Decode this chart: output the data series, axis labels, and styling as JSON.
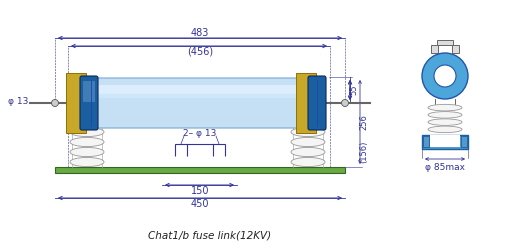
{
  "title": "Chat1/b fuse link(12KV)",
  "bg_color": "#ffffff",
  "line_color": "#444444",
  "blue_fill": "#4da6d9",
  "blue_dark": "#1a4fa0",
  "gold_fill": "#c8a828",
  "green_fill": "#6aaa44",
  "light_blue_fill": "#c8e8f8",
  "dim_color": "#333399",
  "dim_line": "#333399",
  "insulator_color": "#f0f0f0",
  "fuse_body_gradient_top": "#ddeeff",
  "fuse_body_mid": "#aaccee",
  "cap_color": "#1a5fa0",
  "mount_color": "#c8a828",
  "note_483": "483",
  "note_456": "(456)",
  "note_phi13": "φ 13",
  "note_2phi13": "2– φ 13",
  "note_150": "150",
  "note_450": "450",
  "note_55": "55",
  "note_256": "256",
  "note_156": "(156)",
  "note_phi85": "φ 85max"
}
